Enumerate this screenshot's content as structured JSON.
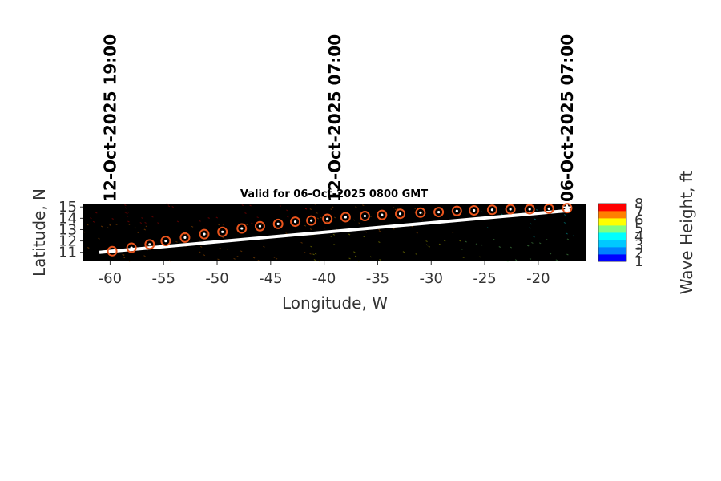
{
  "chart_data": {
    "type": "scatter",
    "title": "Valid for 06-Oct-2025 0800 GMT",
    "xlabel": "Longitude, W",
    "ylabel": "Latitude, N",
    "xlim": [
      -62.5,
      -15.5
    ],
    "ylim": [
      10.2,
      15.3
    ],
    "xticks": [
      -60,
      -55,
      -50,
      -45,
      -40,
      -35,
      -30,
      -25,
      -20
    ],
    "yticks": [
      11,
      12,
      13,
      14,
      15
    ],
    "track": {
      "lon": [
        -61.0,
        -17.0
      ],
      "lat": [
        11.0,
        14.7
      ]
    },
    "forecast_points": {
      "lon": [
        -59.8,
        -58.0,
        -56.3,
        -54.8,
        -53.0,
        -51.2,
        -49.5,
        -47.7,
        -46.0,
        -44.3,
        -42.7,
        -41.2,
        -39.7,
        -38.0,
        -36.2,
        -34.6,
        -32.9,
        -31.0,
        -29.3,
        -27.6,
        -26.0,
        -24.3,
        -22.6,
        -20.8,
        -19.0,
        -17.3
      ],
      "lat": [
        11.1,
        11.4,
        11.7,
        12.0,
        12.3,
        12.6,
        12.8,
        13.1,
        13.3,
        13.5,
        13.7,
        13.8,
        13.95,
        14.1,
        14.2,
        14.3,
        14.4,
        14.5,
        14.55,
        14.65,
        14.7,
        14.75,
        14.8,
        14.8,
        14.85,
        14.9
      ]
    },
    "current_position": {
      "lon": -17.3,
      "lat": 14.9
    },
    "time_annotations": [
      {
        "text": "12-Oct-2025 19:00",
        "lon": -60.0
      },
      {
        "text": "12-Oct-2025 07:00",
        "lon": -39.0
      },
      {
        "text": "06-Oct-2025 07:00",
        "lon": -17.3
      }
    ],
    "colorbar": {
      "label": "Wave Height, ft",
      "ticks": [
        "1",
        "2",
        "3",
        "4",
        "5",
        "6",
        "7",
        "8"
      ],
      "range": [
        1,
        8
      ],
      "colors": [
        "#0000ff",
        "#0080ff",
        "#00c8ff",
        "#00ffff",
        "#80ff80",
        "#ffff00",
        "#ff8000",
        "#ff0000"
      ]
    },
    "colors": {
      "track": "#ffffff",
      "marker_ring": "#e8541c",
      "marker_center": "#ffffff",
      "field_background": "#000000"
    }
  }
}
